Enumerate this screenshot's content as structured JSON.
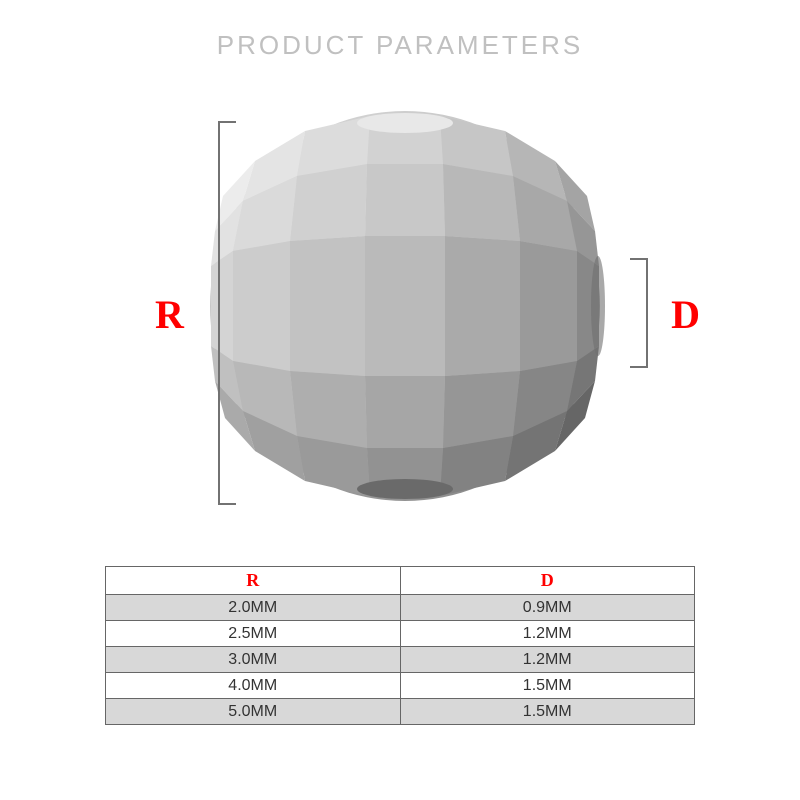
{
  "title": "PRODUCT PARAMETERS",
  "labels": {
    "r": "R",
    "d": "D"
  },
  "label_color": "#ff0000",
  "bracket_color": "#727272",
  "table": {
    "columns": [
      "R",
      "D"
    ],
    "header_color": "#ff0000",
    "rows": [
      [
        "2.0MM",
        "0.9MM"
      ],
      [
        "2.5MM",
        "1.2MM"
      ],
      [
        "3.0MM",
        "1.2MM"
      ],
      [
        "4.0MM",
        "1.5MM"
      ],
      [
        "5.0MM",
        "1.5MM"
      ]
    ],
    "row_bg_odd": "#d8d8d8",
    "row_bg_even": "#ffffff",
    "border_color": "#666666",
    "text_color": "#333333"
  },
  "bead": {
    "colors": {
      "light": "#e8e8e8",
      "mid": "#c4c4c4",
      "midlight": "#d4d4d4",
      "dark": "#9a9a9a",
      "darker": "#7a7a7a",
      "edge": "#d0d0d0"
    }
  }
}
